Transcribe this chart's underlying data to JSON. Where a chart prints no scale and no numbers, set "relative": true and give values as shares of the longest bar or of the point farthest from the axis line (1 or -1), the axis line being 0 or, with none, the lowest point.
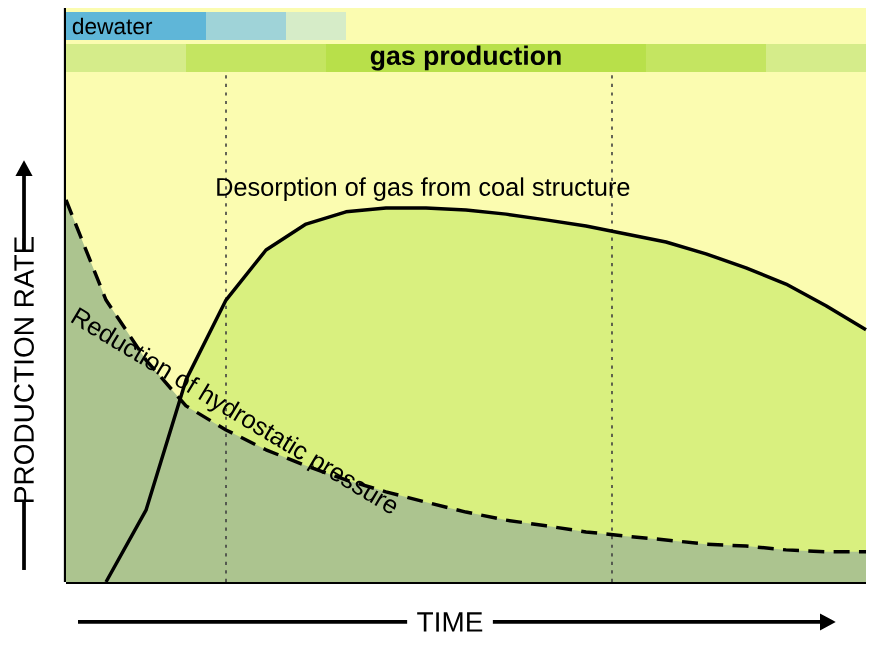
{
  "chart_data": {
    "type": "area",
    "relative": true,
    "xlabel": "TIME",
    "ylabel": "PRODUCTION RATE",
    "categories": [
      null,
      null,
      null,
      null,
      null,
      null,
      null,
      null,
      null,
      null,
      null,
      null,
      null,
      null,
      null,
      null,
      null,
      null,
      null,
      null,
      null
    ],
    "series": [
      {
        "name": "Desorption of gas from coal structure",
        "color": "#d9f07f",
        "line_style": "solid",
        "values": [
          null,
          0,
          0.188,
          0.529,
          0.738,
          0.869,
          0.937,
          0.969,
          0.979,
          0.979,
          0.974,
          0.963,
          0.948,
          0.932,
          0.911,
          0.89,
          0.859,
          0.822,
          0.78,
          0.723,
          0.66
        ]
      },
      {
        "name": "Reduction of hydrostatic pressure",
        "color": "#acc48f",
        "line_style": "dashed",
        "values": [
          1.0,
          0.738,
          0.581,
          0.461,
          0.398,
          0.346,
          0.304,
          0.267,
          0.236,
          0.209,
          0.183,
          0.162,
          0.147,
          0.131,
          0.12,
          0.11,
          0.099,
          0.094,
          0.084,
          0.079,
          0.079
        ]
      }
    ],
    "annotations": [
      "dewater",
      "gas production"
    ]
  }
}
